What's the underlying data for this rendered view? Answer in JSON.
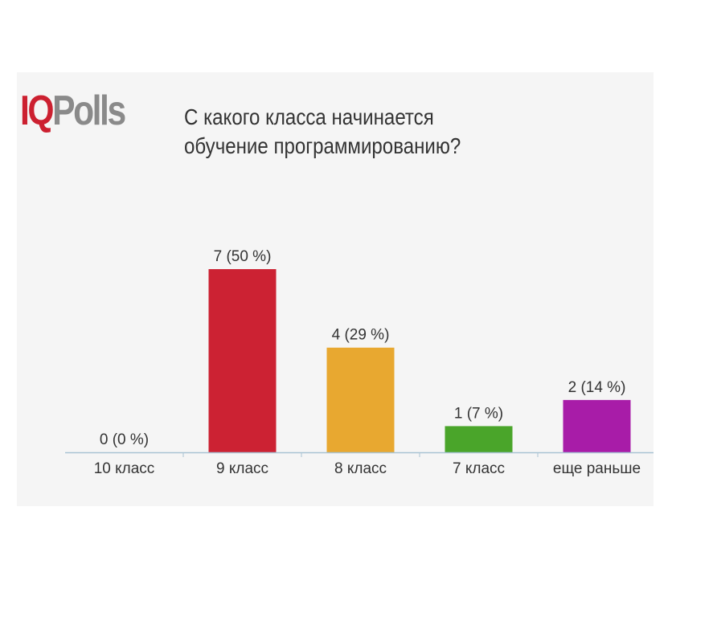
{
  "logo": {
    "part1": "IQ",
    "part2": "Polls"
  },
  "chart_data": {
    "type": "bar",
    "title": "С какого класса начинается обучение программированию?",
    "categories": [
      "10 класс",
      "9 класс",
      "8 класс",
      "7 класс",
      "еще раньше"
    ],
    "values": [
      0,
      7,
      4,
      1,
      2
    ],
    "value_labels": [
      "0 (0 %)",
      "7 (50 %)",
      "4 (29 %)",
      "1 (7 %)",
      "2 (14 %)"
    ],
    "colors": [
      "#999999",
      "#cc2233",
      "#e8a830",
      "#4aa52a",
      "#a81ca8"
    ],
    "ylim": [
      0,
      7
    ],
    "grid": false,
    "legend": "none"
  }
}
